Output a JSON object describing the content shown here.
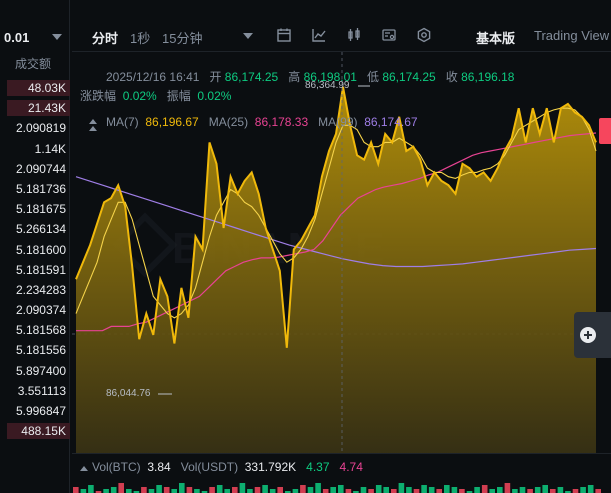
{
  "orderbook": {
    "precision": "0.01",
    "header": "成交额",
    "rows": [
      {
        "text": "48.03K",
        "bar": 0.9
      },
      {
        "text": "21.43K",
        "bar": 0.9
      },
      {
        "text": "2.090819",
        "bar": 0
      },
      {
        "text": "1.14K",
        "bar": 0
      },
      {
        "text": "2.090744",
        "bar": 0
      },
      {
        "text": "5.181736",
        "bar": 0
      },
      {
        "text": "5.181675",
        "bar": 0
      },
      {
        "text": "5.266134",
        "bar": 0
      },
      {
        "text": "5.181600",
        "bar": 0
      },
      {
        "text": "5.181591",
        "bar": 0
      },
      {
        "text": "2.234283",
        "bar": 0
      },
      {
        "text": "2.090374",
        "bar": 0
      },
      {
        "text": "5.181568",
        "bar": 0
      },
      {
        "text": "5.181556",
        "bar": 0
      },
      {
        "text": "5.897400",
        "bar": 0
      },
      {
        "text": "3.551113",
        "bar": 0
      },
      {
        "text": "5.996847",
        "bar": 0
      },
      {
        "text": "488.15K",
        "bar": 0.9
      }
    ]
  },
  "toolbar": {
    "tabs": [
      {
        "label": "分时",
        "active": true
      },
      {
        "label": "1秒",
        "active": false
      },
      {
        "label": "15分钟",
        "active": false
      }
    ],
    "icons": [
      "calendar-icon",
      "indicator-icon",
      "candle-icon",
      "drawing-icon",
      "settings-icon"
    ],
    "basic_label": "基本版",
    "tradingview_label": "Trading View"
  },
  "ohlc": {
    "datetime": "2025/12/16 16:41",
    "open_label": "开",
    "open": "86,174.25",
    "high_label": "高",
    "high": "86,198.01",
    "low_label": "低",
    "low": "86,174.25",
    "close_label": "收",
    "close": "86,196.18",
    "change_label": "涨跌幅",
    "change": "0.02%",
    "amplitude_label": "振幅",
    "amplitude": "0.02%"
  },
  "ma": {
    "ma7_label": "MA(7)",
    "ma7": "86,196.67",
    "ma25_label": "MA(25)",
    "ma25": "86,178.33",
    "ma99_label": "MA(99)",
    "ma99": "86,174.67"
  },
  "price_marks": {
    "high_mark": "86,364.99",
    "low_mark": "86,044.76"
  },
  "watermark": "BINANCE",
  "volume": {
    "btc_label": "Vol(BTC)",
    "btc": "3.84",
    "usdt_label": "Vol(USDT)",
    "usdt": "331.792K",
    "v1": "4.37",
    "v2": "4.74"
  },
  "colors": {
    "gold": "#f0b90b",
    "pink": "#e84393",
    "purple": "#9f7ee6",
    "green": "#0ecb81",
    "red": "#f6465d"
  },
  "chart_data": {
    "type": "area",
    "y_range": [
      86020,
      86380
    ],
    "price": [
      86140,
      86160,
      86180,
      86205,
      86230,
      86235,
      86250,
      86225,
      86155,
      86070,
      86100,
      86075,
      86140,
      86120,
      86065,
      86130,
      86095,
      86190,
      86175,
      86300,
      86275,
      86200,
      86260,
      86240,
      86255,
      86265,
      86240,
      86200,
      86175,
      86150,
      86060,
      86175,
      86185,
      86200,
      86215,
      86260,
      86290,
      86310,
      86365,
      86320,
      86285,
      86280,
      86300,
      86275,
      86310,
      86300,
      86330,
      86290,
      86295,
      86280,
      86250,
      86265,
      86255,
      86250,
      86240,
      86275,
      86270,
      86260,
      86265,
      86255,
      86270,
      86290,
      86305,
      86340,
      86300,
      86340,
      86310,
      86340,
      86300,
      86340,
      86345,
      86335,
      86330,
      86320,
      86300
    ],
    "ma7": [
      86100,
      86120,
      86140,
      86160,
      86190,
      86210,
      86230,
      86230,
      86210,
      86180,
      86150,
      86120,
      86110,
      86100,
      86095,
      86100,
      86110,
      86130,
      86160,
      86190,
      86215,
      86230,
      86245,
      86240,
      86230,
      86225,
      86215,
      86200,
      86185,
      86170,
      86160,
      86165,
      86175,
      86190,
      86210,
      86240,
      86270,
      86300,
      86320,
      86320,
      86315,
      86300,
      86295,
      86295,
      86300,
      86300,
      86305,
      86300,
      86295,
      86285,
      86270,
      86265,
      86265,
      86260,
      86258,
      86262,
      86265,
      86265,
      86268,
      86270,
      86275,
      86285,
      86300,
      86315,
      86320,
      86325,
      86330,
      86335,
      86338,
      86340,
      86340,
      86338,
      86330,
      86315,
      86290
    ],
    "ma25": [
      86080,
      86080,
      86080,
      86080,
      86085,
      86085,
      86085,
      86088,
      86090,
      86095,
      86100,
      86105,
      86110,
      86115,
      86120,
      86130,
      86140,
      86150,
      86155,
      86160,
      86163,
      86165,
      86165,
      86166,
      86168,
      86170,
      86172,
      86175,
      86185,
      86200,
      86215,
      86225,
      86235,
      86240,
      86245,
      86248,
      86250,
      86252,
      86255,
      86258,
      86262,
      86265,
      86270,
      86275,
      86280,
      86285,
      86288,
      86290,
      86292,
      86294,
      86296,
      86298,
      86300,
      86302,
      86304,
      86306,
      86308,
      86309,
      86310,
      86311
    ],
    "ma99": [
      86260,
      86255,
      86250,
      86245,
      86240,
      86235,
      86230,
      86225,
      86220,
      86215,
      86210,
      86205,
      86200,
      86195,
      86190,
      86185,
      86180,
      86176,
      86172,
      86168,
      86164,
      86161,
      86158,
      86156,
      86155,
      86155,
      86155,
      86156,
      86157,
      86158,
      86160,
      86162,
      86164,
      86166,
      86168,
      86170,
      86172,
      86174,
      86175,
      86176
    ],
    "volume_bars": [
      3,
      2,
      4,
      1,
      2,
      3,
      5,
      2,
      1,
      3,
      2,
      4,
      3,
      2,
      5,
      3,
      2,
      1,
      3,
      4,
      2,
      3,
      5,
      2,
      3,
      4,
      2,
      3,
      1,
      2,
      4,
      3,
      5,
      2,
      3,
      4,
      2,
      1,
      3,
      2,
      4,
      3,
      2,
      5,
      3,
      2,
      4,
      3,
      2,
      4,
      3,
      2,
      1,
      3,
      4,
      2,
      3,
      5,
      2,
      3,
      2,
      3,
      4,
      2,
      3,
      1,
      2,
      3,
      4,
      2
    ]
  }
}
